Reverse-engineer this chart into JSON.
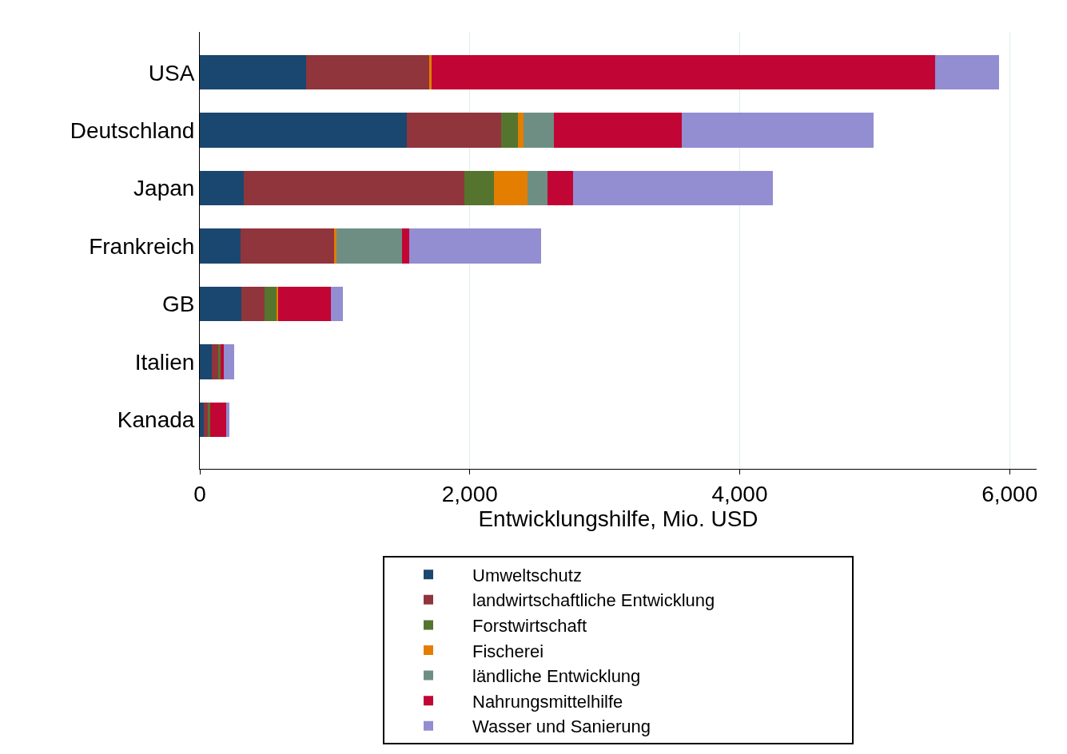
{
  "chart_data": {
    "type": "bar",
    "orientation": "horizontal",
    "stacked": true,
    "xlabel": "Entwicklungshilfe, Mio. USD",
    "categories": [
      "USA",
      "Deutschland",
      "Japan",
      "Frankreich",
      "GB",
      "Italien",
      "Kanada"
    ],
    "series": [
      {
        "name": "Umweltschutz",
        "color": "#1a476f",
        "values": [
          790,
          1535,
          327,
          303,
          305,
          91,
          32
        ]
      },
      {
        "name": "landwirtschaftliche Entwicklung",
        "color": "#90353b",
        "values": [
          910,
          700,
          1636,
          693,
          173,
          50,
          29
        ]
      },
      {
        "name": "Forstwirtschaft",
        "color": "#55752f",
        "values": [
          0,
          121,
          217,
          0,
          89,
          10,
          14
        ]
      },
      {
        "name": "Fischerei",
        "color": "#e37e00",
        "values": [
          20,
          42,
          248,
          14,
          16,
          0,
          0
        ]
      },
      {
        "name": "ländliche Entwicklung",
        "color": "#6e8e84",
        "values": [
          0,
          224,
          147,
          488,
          0,
          0,
          0
        ]
      },
      {
        "name": "Nahrungsmittelhilfe",
        "color": "#c10534",
        "values": [
          3726,
          946,
          190,
          53,
          389,
          25,
          123
        ]
      },
      {
        "name": "Wasser und Sanierung",
        "color": "#938dd2",
        "values": [
          474,
          1422,
          1480,
          978,
          85,
          80,
          20
        ]
      }
    ],
    "xlim": [
      0,
      6200
    ],
    "xticks": [
      0,
      {
        "value": 2000,
        "label": "2,000"
      },
      {
        "value": 4000,
        "label": "4,000"
      },
      {
        "value": 6000,
        "label": "6,000"
      }
    ],
    "grid": "x",
    "legend": "bottom"
  }
}
